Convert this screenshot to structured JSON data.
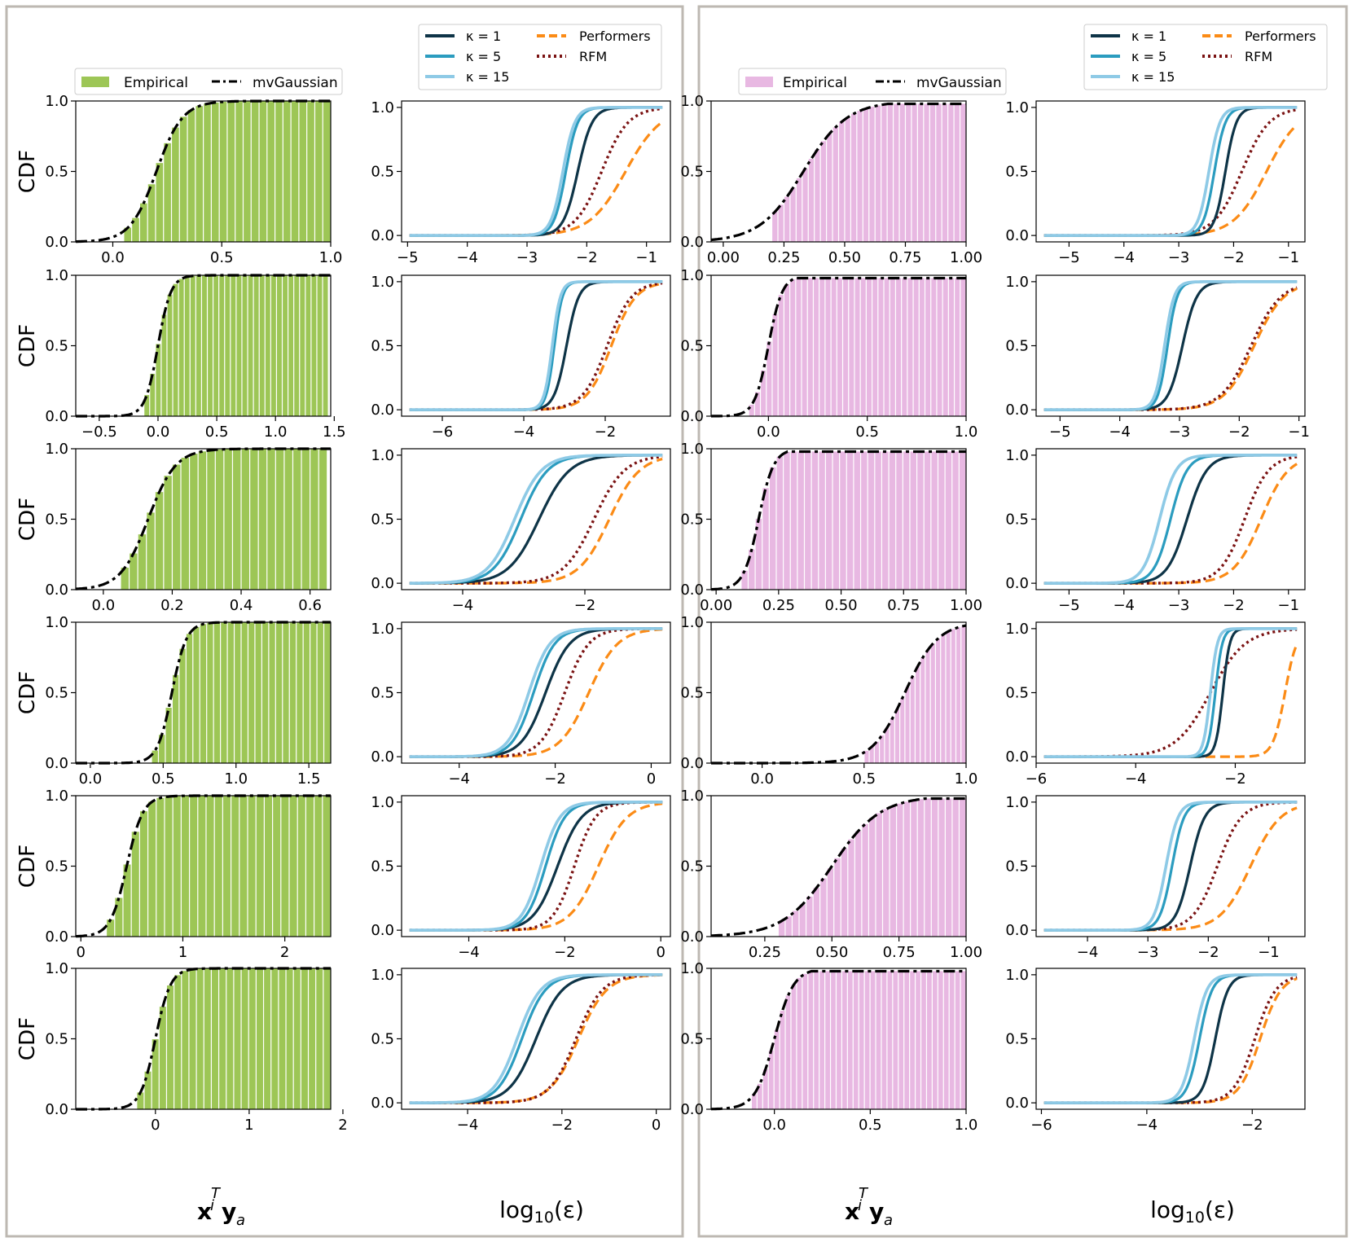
{
  "colors": {
    "empirical_green": "#9dc656",
    "empirical_pink": "#e8b8e2",
    "mvgaussian": "#000000",
    "k1": "#0e3447",
    "k5": "#2b9cbf",
    "k15": "#8ecae6",
    "performers": "#fb8b16",
    "rfm": "#7a1212",
    "panel_border": "#bdb8b2"
  },
  "labels": {
    "cdf_ylabel": "CDF",
    "left_xlabel": "x_i^T y_a",
    "right_xlabel": "log10(ε)"
  },
  "legends": {
    "hist": {
      "empirical": "Empirical",
      "mvgaussian": "mvGaussian"
    },
    "err": {
      "k1": "κ = 1",
      "k5": "κ = 5",
      "k15": "κ = 15",
      "performers": "Performers",
      "rfm": "RFM"
    }
  },
  "chart_data": [
    {
      "group": "left",
      "row": 0,
      "type": "hist",
      "xlim": [
        -0.17,
        1.0
      ],
      "ylim": [
        0,
        1
      ],
      "xticks": [
        "0.0",
        "0.5",
        "1.0"
      ],
      "xtick_values": [
        0,
        0.5,
        1.0
      ],
      "yticks": [
        "0.0",
        "0.5",
        "1.0"
      ],
      "center": 0.2,
      "scale": 0.06,
      "hist_range": [
        0.05,
        1.0
      ],
      "bins": 26
    },
    {
      "group": "left",
      "row": 0,
      "type": "line",
      "xlim": [
        -5.1,
        -0.6
      ],
      "ylim": [
        0,
        1
      ],
      "xticks": [
        "−5",
        "−4",
        "−3",
        "−2",
        "−1"
      ],
      "xtick_values": [
        -5,
        -4,
        -3,
        -2,
        -1
      ],
      "yticks": [
        "0.0",
        "0.5",
        "1.0"
      ],
      "series": [
        {
          "name": "κ = 1",
          "center": -2.15,
          "scale": 0.12
        },
        {
          "name": "κ = 5",
          "center": -2.35,
          "scale": 0.1
        },
        {
          "name": "κ = 15",
          "center": -2.4,
          "scale": 0.1
        },
        {
          "name": "Performers",
          "center": -1.35,
          "scale": 0.3
        },
        {
          "name": "RFM",
          "center": -1.75,
          "scale": 0.22
        }
      ]
    },
    {
      "group": "left",
      "row": 1,
      "type": "hist",
      "xlim": [
        -0.7,
        1.47
      ],
      "ylim": [
        0,
        1
      ],
      "xticks": [
        "−0.5",
        "0.0",
        "0.5",
        "1.0",
        "1.5"
      ],
      "xtick_values": [
        -0.5,
        0,
        0.5,
        1.0,
        1.5
      ],
      "yticks": [
        "0.0",
        "0.5",
        "1.0"
      ],
      "center": 0.0,
      "scale": 0.055,
      "hist_range": [
        -0.12,
        1.45
      ],
      "bins": 32
    },
    {
      "group": "left",
      "row": 1,
      "type": "line",
      "xlim": [
        -7.0,
        -0.4
      ],
      "ylim": [
        0,
        1
      ],
      "xticks": [
        "−6",
        "−4",
        "−2"
      ],
      "xtick_values": [
        -6,
        -4,
        -2
      ],
      "yticks": [
        "0.0",
        "0.5",
        "1.0"
      ],
      "series": [
        {
          "name": "κ = 1",
          "center": -2.95,
          "scale": 0.15
        },
        {
          "name": "κ = 5",
          "center": -3.25,
          "scale": 0.1
        },
        {
          "name": "κ = 15",
          "center": -3.3,
          "scale": 0.1
        },
        {
          "name": "Performers",
          "center": -1.85,
          "scale": 0.3
        },
        {
          "name": "RFM",
          "center": -1.95,
          "scale": 0.3
        }
      ]
    },
    {
      "group": "left",
      "row": 2,
      "type": "hist",
      "xlim": [
        -0.08,
        0.66
      ],
      "ylim": [
        0,
        1
      ],
      "xticks": [
        "0.0",
        "0.2",
        "0.4",
        "0.6"
      ],
      "xtick_values": [
        0,
        0.2,
        0.4,
        0.6
      ],
      "yticks": [
        "0.0",
        "0.5",
        "1.0"
      ],
      "center": 0.13,
      "scale": 0.04,
      "hist_range": [
        0.05,
        0.65
      ],
      "bins": 24
    },
    {
      "group": "left",
      "row": 2,
      "type": "line",
      "xlim": [
        -5.0,
        -0.6
      ],
      "ylim": [
        0,
        1
      ],
      "xticks": [
        "−4",
        "−2"
      ],
      "xtick_values": [
        -4,
        -2
      ],
      "yticks": [
        "0.0",
        "0.5",
        "1.0"
      ],
      "series": [
        {
          "name": "κ = 1",
          "center": -2.75,
          "scale": 0.25
        },
        {
          "name": "κ = 5",
          "center": -3.05,
          "scale": 0.22
        },
        {
          "name": "κ = 15",
          "center": -3.15,
          "scale": 0.22
        },
        {
          "name": "Performers",
          "center": -1.6,
          "scale": 0.25
        },
        {
          "name": "RFM",
          "center": -1.85,
          "scale": 0.25
        }
      ]
    },
    {
      "group": "left",
      "row": 3,
      "type": "hist",
      "xlim": [
        -0.1,
        1.65
      ],
      "ylim": [
        0,
        1
      ],
      "xticks": [
        "0.0",
        "0.5",
        "1.0",
        "1.5"
      ],
      "xtick_values": [
        0,
        0.5,
        1.0,
        1.5
      ],
      "yticks": [
        "0.0",
        "0.5",
        "1.0"
      ],
      "center": 0.56,
      "scale": 0.05,
      "hist_range": [
        0.42,
        1.65
      ],
      "bins": 26
    },
    {
      "group": "left",
      "row": 3,
      "type": "line",
      "xlim": [
        -5.2,
        0.4
      ],
      "ylim": [
        0,
        1
      ],
      "xticks": [
        "−4",
        "−2",
        "0"
      ],
      "xtick_values": [
        -4,
        -2,
        0
      ],
      "yticks": [
        "0.0",
        "0.5",
        "1.0"
      ],
      "series": [
        {
          "name": "κ = 1",
          "center": -2.2,
          "scale": 0.25
        },
        {
          "name": "κ = 5",
          "center": -2.45,
          "scale": 0.22
        },
        {
          "name": "κ = 15",
          "center": -2.55,
          "scale": 0.22
        },
        {
          "name": "Performers",
          "center": -1.3,
          "scale": 0.3
        },
        {
          "name": "RFM",
          "center": -1.8,
          "scale": 0.25
        }
      ]
    },
    {
      "group": "left",
      "row": 4,
      "type": "hist",
      "xlim": [
        -0.05,
        2.45
      ],
      "ylim": [
        0,
        1
      ],
      "xticks": [
        "0",
        "1",
        "2"
      ],
      "xtick_values": [
        0,
        1,
        2
      ],
      "yticks": [
        "0.0",
        "0.5",
        "1.0"
      ],
      "center": 0.45,
      "scale": 0.08,
      "hist_range": [
        0.25,
        2.45
      ],
      "bins": 27
    },
    {
      "group": "left",
      "row": 4,
      "type": "line",
      "xlim": [
        -5.4,
        0.2
      ],
      "ylim": [
        0,
        1
      ],
      "xticks": [
        "−4",
        "−2",
        "0"
      ],
      "xtick_values": [
        -4,
        -2,
        0
      ],
      "yticks": [
        "0.0",
        "0.5",
        "1.0"
      ],
      "series": [
        {
          "name": "κ = 1",
          "center": -2.15,
          "scale": 0.25
        },
        {
          "name": "κ = 5",
          "center": -2.4,
          "scale": 0.2
        },
        {
          "name": "κ = 15",
          "center": -2.5,
          "scale": 0.2
        },
        {
          "name": "Performers",
          "center": -1.3,
          "scale": 0.3
        },
        {
          "name": "RFM",
          "center": -1.8,
          "scale": 0.22
        }
      ]
    },
    {
      "group": "left",
      "row": 5,
      "type": "hist",
      "xlim": [
        -0.85,
        1.87
      ],
      "ylim": [
        0,
        1
      ],
      "xticks": [
        "0",
        "1",
        "2"
      ],
      "xtick_values": [
        0,
        1,
        2
      ],
      "yticks": [
        "0.0",
        "0.5",
        "1.0"
      ],
      "center": 0.0,
      "scale": 0.08,
      "hist_range": [
        -0.2,
        1.87
      ],
      "bins": 26
    },
    {
      "group": "left",
      "row": 5,
      "type": "line",
      "xlim": [
        -5.4,
        0.3
      ],
      "ylim": [
        0,
        1
      ],
      "xticks": [
        "−4",
        "−2",
        "0"
      ],
      "xtick_values": [
        -4,
        -2,
        0
      ],
      "yticks": [
        "0.0",
        "0.5",
        "1.0"
      ],
      "series": [
        {
          "name": "κ = 1",
          "center": -2.55,
          "scale": 0.28
        },
        {
          "name": "κ = 5",
          "center": -2.85,
          "scale": 0.25
        },
        {
          "name": "κ = 15",
          "center": -2.95,
          "scale": 0.25
        },
        {
          "name": "Performers",
          "center": -1.65,
          "scale": 0.3
        },
        {
          "name": "RFM",
          "center": -1.7,
          "scale": 0.28
        }
      ]
    },
    {
      "group": "right",
      "row": 0,
      "type": "hist",
      "xlim": [
        -0.05,
        1.0
      ],
      "ylim": [
        0,
        1
      ],
      "xticks": [
        "0.00",
        "0.25",
        "0.50",
        "0.75",
        "1.00"
      ],
      "xtick_values": [
        0,
        0.25,
        0.5,
        0.75,
        1.0
      ],
      "yticks": [
        "0.0",
        "0.5",
        "1.0"
      ],
      "center": 0.33,
      "scale": 0.09,
      "hist_range": [
        0.2,
        1.0
      ],
      "bins": 32,
      "top": 0.98
    },
    {
      "group": "right",
      "row": 0,
      "type": "line",
      "xlim": [
        -5.6,
        -0.7
      ],
      "ylim": [
        0,
        1
      ],
      "xticks": [
        "−5",
        "−4",
        "−3",
        "−2",
        "−1"
      ],
      "xtick_values": [
        -5,
        -4,
        -3,
        -2,
        -1
      ],
      "yticks": [
        "0.0",
        "0.5",
        "1.0"
      ],
      "series": [
        {
          "name": "κ = 1",
          "center": -2.15,
          "scale": 0.1
        },
        {
          "name": "κ = 5",
          "center": -2.35,
          "scale": 0.1
        },
        {
          "name": "κ = 15",
          "center": -2.45,
          "scale": 0.1
        },
        {
          "name": "Performers",
          "center": -1.4,
          "scale": 0.3
        },
        {
          "name": "RFM",
          "center": -1.85,
          "scale": 0.25
        }
      ]
    },
    {
      "group": "right",
      "row": 1,
      "type": "hist",
      "xlim": [
        -0.29,
        1.0
      ],
      "ylim": [
        0,
        1
      ],
      "xticks": [
        "0.0",
        "0.5",
        "1.0"
      ],
      "xtick_values": [
        0,
        0.5,
        1.0
      ],
      "yticks": [
        "0.0",
        "0.5",
        "1.0"
      ],
      "center": 0.0,
      "scale": 0.035,
      "hist_range": [
        -0.1,
        1.0
      ],
      "bins": 37,
      "top": 0.98
    },
    {
      "group": "right",
      "row": 1,
      "type": "line",
      "xlim": [
        -5.4,
        -0.9
      ],
      "ylim": [
        0,
        1
      ],
      "xticks": [
        "−5",
        "−4",
        "−3",
        "−2",
        "−1"
      ],
      "xtick_values": [
        -5,
        -4,
        -3,
        -2,
        -1
      ],
      "yticks": [
        "0.0",
        "0.5",
        "1.0"
      ],
      "series": [
        {
          "name": "κ = 1",
          "center": -2.95,
          "scale": 0.12
        },
        {
          "name": "κ = 5",
          "center": -3.2,
          "scale": 0.08
        },
        {
          "name": "κ = 15",
          "center": -3.25,
          "scale": 0.08
        },
        {
          "name": "Performers",
          "center": -1.75,
          "scale": 0.25
        },
        {
          "name": "RFM",
          "center": -1.8,
          "scale": 0.25
        }
      ]
    },
    {
      "group": "right",
      "row": 2,
      "type": "hist",
      "xlim": [
        -0.02,
        1.0
      ],
      "ylim": [
        0,
        1
      ],
      "xticks": [
        "0.00",
        "0.25",
        "0.50",
        "0.75",
        "1.00"
      ],
      "xtick_values": [
        0,
        0.25,
        0.5,
        0.75,
        1.0
      ],
      "yticks": [
        "0.0",
        "0.5",
        "1.0"
      ],
      "center": 0.17,
      "scale": 0.03,
      "hist_range": [
        0.1,
        1.0
      ],
      "bins": 32,
      "top": 0.98
    },
    {
      "group": "right",
      "row": 2,
      "type": "line",
      "xlim": [
        -5.6,
        -0.7
      ],
      "ylim": [
        0,
        1
      ],
      "xticks": [
        "−5",
        "−4",
        "−3",
        "−2",
        "−1"
      ],
      "xtick_values": [
        -5,
        -4,
        -3,
        -2,
        -1
      ],
      "yticks": [
        "0.0",
        "0.5",
        "1.0"
      ],
      "series": [
        {
          "name": "κ = 1",
          "center": -2.85,
          "scale": 0.18
        },
        {
          "name": "κ = 5",
          "center": -3.15,
          "scale": 0.15
        },
        {
          "name": "κ = 15",
          "center": -3.35,
          "scale": 0.15
        },
        {
          "name": "Performers",
          "center": -1.5,
          "scale": 0.25
        },
        {
          "name": "RFM",
          "center": -1.8,
          "scale": 0.22
        }
      ]
    },
    {
      "group": "right",
      "row": 3,
      "type": "hist",
      "xlim": [
        -0.25,
        1.0
      ],
      "ylim": [
        0,
        1
      ],
      "xticks": [
        "0.0",
        "0.5",
        "1.0"
      ],
      "xtick_values": [
        0,
        0.5,
        1.0
      ],
      "yticks": [
        "0.0",
        "0.5",
        "1.0"
      ],
      "center": 0.7,
      "scale": 0.08,
      "hist_range": [
        0.5,
        1.0
      ],
      "bins": 20,
      "top": 0.98
    },
    {
      "group": "right",
      "row": 3,
      "type": "line",
      "xlim": [
        -6.0,
        -0.6
      ],
      "ylim": [
        0,
        1
      ],
      "xticks": [
        "−6",
        "−4",
        "−2"
      ],
      "xtick_values": [
        -6,
        -4,
        -2
      ],
      "yticks": [
        "0.0",
        "0.5",
        "1.0"
      ],
      "series": [
        {
          "name": "κ = 1",
          "center": -2.25,
          "scale": 0.07
        },
        {
          "name": "κ = 5",
          "center": -2.4,
          "scale": 0.07
        },
        {
          "name": "κ = 15",
          "center": -2.5,
          "scale": 0.07
        },
        {
          "name": "Performers",
          "center": -1.0,
          "scale": 0.12
        },
        {
          "name": "RFM",
          "center": -2.5,
          "scale": 0.35
        }
      ]
    },
    {
      "group": "right",
      "row": 4,
      "type": "hist",
      "xlim": [
        0.05,
        1.0
      ],
      "ylim": [
        0,
        1
      ],
      "xticks": [
        "0.25",
        "0.50",
        "0.75",
        "1.00"
      ],
      "xtick_values": [
        0.25,
        0.5,
        0.75,
        1.0
      ],
      "yticks": [
        "0.0",
        "0.5",
        "1.0"
      ],
      "center": 0.5,
      "scale": 0.09,
      "hist_range": [
        0.3,
        1.0
      ],
      "bins": 27,
      "top": 0.98
    },
    {
      "group": "right",
      "row": 4,
      "type": "line",
      "xlim": [
        -4.85,
        -0.4
      ],
      "ylim": [
        0,
        1
      ],
      "xticks": [
        "−4",
        "−3",
        "−2",
        "−1"
      ],
      "xtick_values": [
        -4,
        -3,
        -2,
        -1
      ],
      "yticks": [
        "0.0",
        "0.5",
        "1.0"
      ],
      "series": [
        {
          "name": "κ = 1",
          "center": -2.3,
          "scale": 0.12
        },
        {
          "name": "κ = 5",
          "center": -2.6,
          "scale": 0.1
        },
        {
          "name": "κ = 15",
          "center": -2.7,
          "scale": 0.1
        },
        {
          "name": "Performers",
          "center": -1.3,
          "scale": 0.25
        },
        {
          "name": "RFM",
          "center": -1.85,
          "scale": 0.2
        }
      ]
    },
    {
      "group": "right",
      "row": 5,
      "type": "hist",
      "xlim": [
        -0.33,
        1.0
      ],
      "ylim": [
        0,
        1
      ],
      "xticks": [
        "0.0",
        "0.5",
        "1.0"
      ],
      "xtick_values": [
        0,
        0.5,
        1.0
      ],
      "yticks": [
        "0.0",
        "0.5",
        "1.0"
      ],
      "center": 0.0,
      "scale": 0.05,
      "hist_range": [
        -0.12,
        1.0
      ],
      "bins": 38,
      "top": 0.98
    },
    {
      "group": "right",
      "row": 5,
      "type": "line",
      "xlim": [
        -6.1,
        -1.0
      ],
      "ylim": [
        0,
        1
      ],
      "xticks": [
        "−6",
        "−4",
        "−2"
      ],
      "xtick_values": [
        -6,
        -4,
        -2
      ],
      "yticks": [
        "0.0",
        "0.5",
        "1.0"
      ],
      "series": [
        {
          "name": "κ = 1",
          "center": -2.7,
          "scale": 0.12
        },
        {
          "name": "κ = 5",
          "center": -3.0,
          "scale": 0.12
        },
        {
          "name": "κ = 15",
          "center": -3.1,
          "scale": 0.12
        },
        {
          "name": "Performers",
          "center": -1.85,
          "scale": 0.2
        },
        {
          "name": "RFM",
          "center": -1.95,
          "scale": 0.2
        }
      ]
    }
  ]
}
